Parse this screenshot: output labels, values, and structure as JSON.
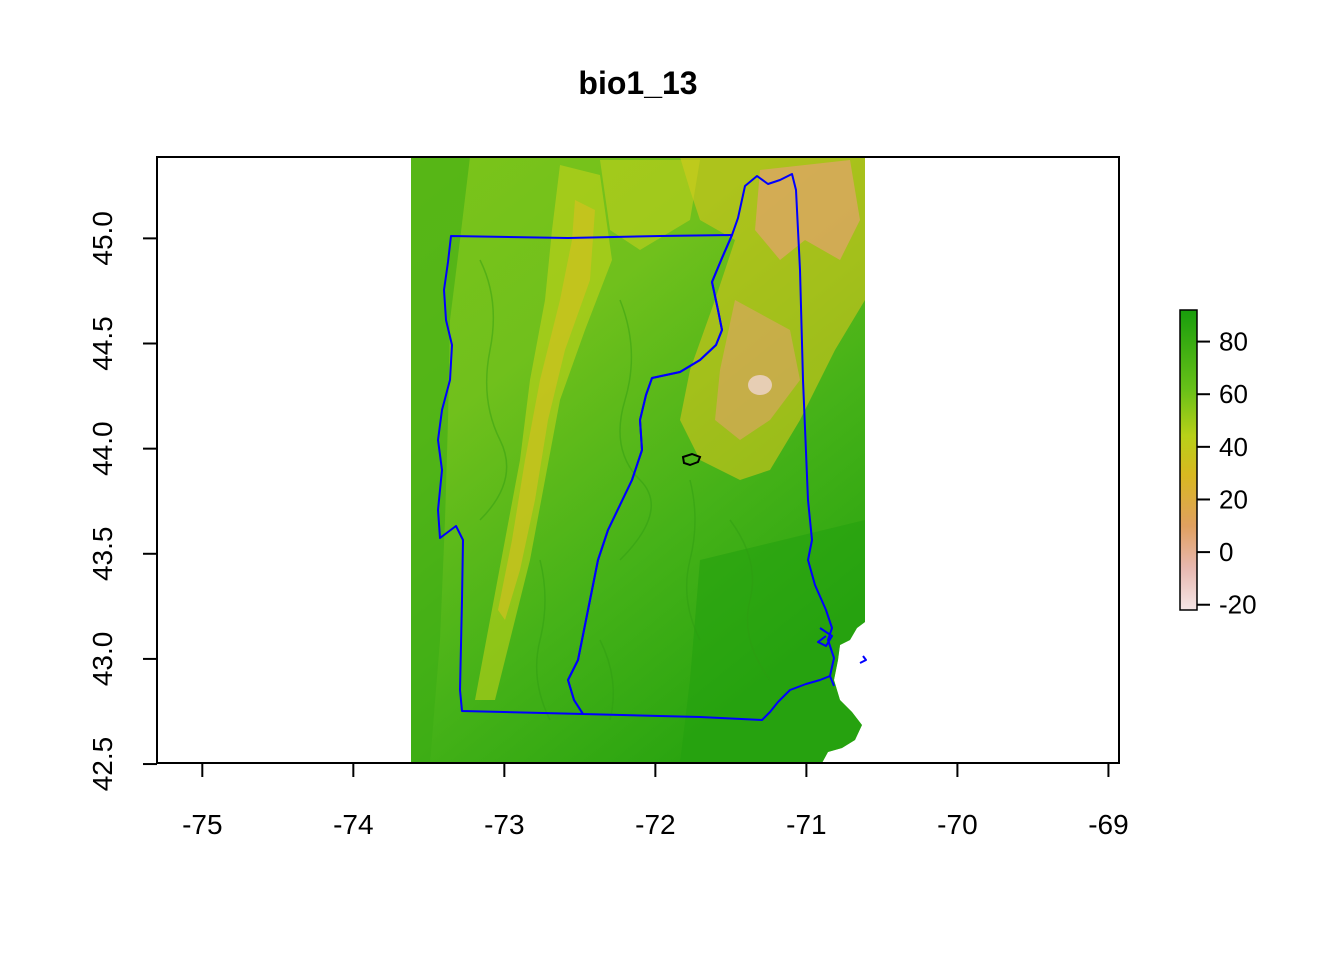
{
  "title": "bio1_13",
  "x_axis": {
    "ticks": [
      {
        "value": -75,
        "label": "-75"
      },
      {
        "value": -74,
        "label": "-74"
      },
      {
        "value": -73,
        "label": "-73"
      },
      {
        "value": -72,
        "label": "-72"
      },
      {
        "value": -71,
        "label": "-71"
      },
      {
        "value": -70,
        "label": "-70"
      },
      {
        "value": -69,
        "label": "-69"
      }
    ],
    "range": [
      -75.3,
      -68.93
    ]
  },
  "y_axis": {
    "ticks": [
      {
        "value": 42.5,
        "label": "42.5"
      },
      {
        "value": 43.0,
        "label": "43.0"
      },
      {
        "value": 43.5,
        "label": "43.5"
      },
      {
        "value": 44.0,
        "label": "44.0"
      },
      {
        "value": 44.5,
        "label": "44.5"
      },
      {
        "value": 45.0,
        "label": "45.0"
      }
    ],
    "range": [
      42.505,
      45.387
    ]
  },
  "raster": {
    "extent_lon": [
      -73.6,
      -70.6
    ],
    "extent_lat": [
      42.505,
      45.387
    ],
    "palette": [
      "#f5e6e6",
      "#e8b0a6",
      "#e0a060",
      "#d6c818",
      "#9ccf1c",
      "#46b61a",
      "#189d0c"
    ]
  },
  "legend": {
    "ticks": [
      {
        "value": 80,
        "label": "80"
      },
      {
        "value": 60,
        "label": "60"
      },
      {
        "value": 40,
        "label": "40"
      },
      {
        "value": 20,
        "label": "20"
      },
      {
        "value": 0,
        "label": "0"
      },
      {
        "value": -20,
        "label": "-20"
      }
    ],
    "range": [
      -22,
      92
    ]
  },
  "boundaries": {
    "state_outline_color": "#0000ff",
    "lake_outline_color": "#000000"
  }
}
